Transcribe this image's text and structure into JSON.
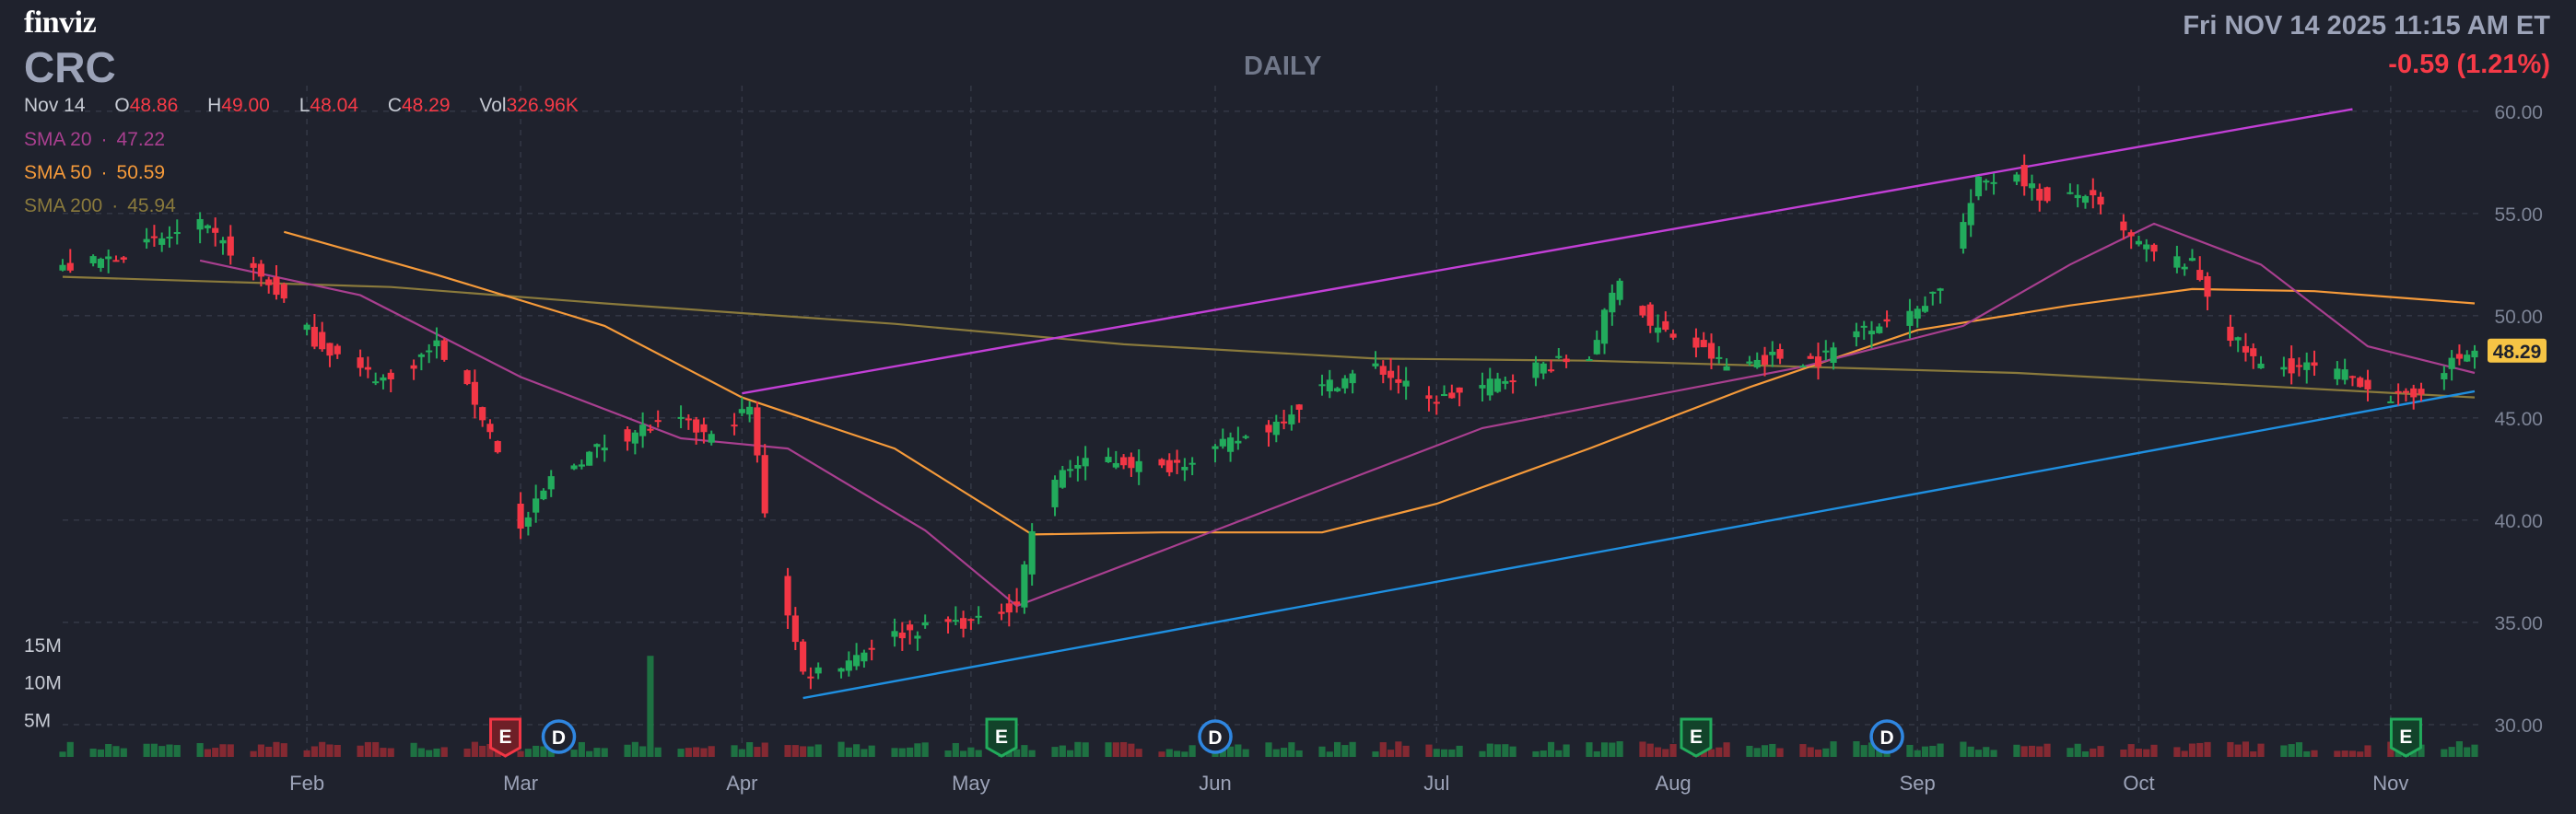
{
  "header": {
    "logo": "finviz",
    "ticker": "CRC",
    "period": "DAILY",
    "datetime": "Fri NOV 14 2025 11:15 AM ET",
    "change": "-0.59 (1.21%)"
  },
  "ohlc": {
    "date": "Nov 14",
    "o_label": "O",
    "o": "48.86",
    "h_label": "H",
    "h": "49.00",
    "l_label": "L",
    "l": "48.04",
    "c_label": "C",
    "c": "48.29",
    "vol_label": "Vol",
    "vol": "326.96K"
  },
  "indicators": [
    {
      "label": "SMA 20",
      "value": "47.22",
      "color": "#a83f8f"
    },
    {
      "label": "SMA 50",
      "value": "50.59",
      "color": "#f59a3a"
    },
    {
      "label": "SMA 200",
      "value": "45.94",
      "color": "#8a7a3c"
    }
  ],
  "colors": {
    "background": "#1f222d",
    "up": "#22ab5c",
    "down": "#f23645",
    "grid": "#363a47",
    "upper_trendline": "#c23fd6",
    "lower_trendline": "#1f8fe0",
    "last_price_tag": "#f6c445"
  },
  "chart_data": {
    "type": "candlestick",
    "ylim": [
      29.5,
      60.8
    ],
    "yticks": [
      "60.00",
      "55.00",
      "50.00",
      "45.00",
      "40.00",
      "35.00",
      "30.00"
    ],
    "volume_ticks": [
      "15M",
      "10M",
      "5M"
    ],
    "x_start": "2025-01-02",
    "x_end": "2025-11-14",
    "month_labels": [
      {
        "label": "Feb",
        "date": "2025-02-03"
      },
      {
        "label": "Mar",
        "date": "2025-03-03"
      },
      {
        "label": "Apr",
        "date": "2025-04-01"
      },
      {
        "label": "May",
        "date": "2025-05-01"
      },
      {
        "label": "Jun",
        "date": "2025-06-02"
      },
      {
        "label": "Jul",
        "date": "2025-07-01"
      },
      {
        "label": "Aug",
        "date": "2025-08-01"
      },
      {
        "label": "Sep",
        "date": "2025-09-02"
      },
      {
        "label": "Oct",
        "date": "2025-10-01"
      },
      {
        "label": "Nov",
        "date": "2025-11-03"
      }
    ],
    "last_price": "48.29",
    "price_path": [
      [
        "2025-01-02",
        52.3
      ],
      [
        "2025-01-08",
        52.8
      ],
      [
        "2025-01-14",
        53.6
      ],
      [
        "2025-01-20",
        54.4
      ],
      [
        "2025-01-24",
        53.2
      ],
      [
        "2025-01-30",
        51.2
      ],
      [
        "2025-02-04",
        48.8
      ],
      [
        "2025-02-10",
        47.3
      ],
      [
        "2025-02-14",
        46.8
      ],
      [
        "2025-02-20",
        48.6
      ],
      [
        "2025-02-25",
        45.8
      ],
      [
        "2025-02-28",
        43.5
      ],
      [
        "2025-03-03",
        39.5
      ],
      [
        "2025-03-07",
        42.0
      ],
      [
        "2025-03-13",
        43.5
      ],
      [
        "2025-03-19",
        44.5
      ],
      [
        "2025-03-24",
        44.8
      ],
      [
        "2025-03-28",
        44.0
      ],
      [
        "2025-04-02",
        45.5
      ],
      [
        "2025-04-04",
        40.5
      ],
      [
        "2025-04-07",
        35.5
      ],
      [
        "2025-04-09",
        32.5
      ],
      [
        "2025-04-14",
        33.0
      ],
      [
        "2025-04-20",
        34.3
      ],
      [
        "2025-04-28",
        35.0
      ],
      [
        "2025-05-02",
        35.0
      ],
      [
        "2025-05-07",
        36.0
      ],
      [
        "2025-05-09",
        39.5
      ],
      [
        "2025-05-13",
        42.5
      ],
      [
        "2025-05-19",
        43.0
      ],
      [
        "2025-05-26",
        42.5
      ],
      [
        "2025-06-02",
        43.5
      ],
      [
        "2025-06-09",
        44.5
      ],
      [
        "2025-06-16",
        46.5
      ],
      [
        "2025-06-23",
        47.5
      ],
      [
        "2025-06-30",
        45.8
      ],
      [
        "2025-07-07",
        46.5
      ],
      [
        "2025-07-14",
        47.5
      ],
      [
        "2025-07-21",
        48.0
      ],
      [
        "2025-07-25",
        52.0
      ],
      [
        "2025-07-29",
        49.5
      ],
      [
        "2025-08-04",
        48.5
      ],
      [
        "2025-08-08",
        47.5
      ],
      [
        "2025-08-14",
        48.0
      ],
      [
        "2025-08-20",
        47.8
      ],
      [
        "2025-08-26",
        49.5
      ],
      [
        "2025-09-01",
        50.0
      ],
      [
        "2025-09-05",
        51.5
      ],
      [
        "2025-09-10",
        56.5
      ],
      [
        "2025-09-15",
        57.0
      ],
      [
        "2025-09-19",
        55.5
      ],
      [
        "2025-09-24",
        56.0
      ],
      [
        "2025-09-29",
        54.0
      ],
      [
        "2025-10-03",
        53.0
      ],
      [
        "2025-10-08",
        52.5
      ],
      [
        "2025-10-13",
        49.0
      ],
      [
        "2025-10-17",
        47.5
      ],
      [
        "2025-10-23",
        47.5
      ],
      [
        "2025-10-29",
        47.0
      ],
      [
        "2025-11-03",
        46.0
      ],
      [
        "2025-11-06",
        46.0
      ],
      [
        "2025-11-10",
        47.5
      ],
      [
        "2025-11-14",
        48.29
      ]
    ],
    "sma_20": [
      [
        "2025-01-20",
        52.7
      ],
      [
        "2025-02-10",
        51.0
      ],
      [
        "2025-03-03",
        47.0
      ],
      [
        "2025-03-24",
        44.0
      ],
      [
        "2025-04-07",
        43.5
      ],
      [
        "2025-04-25",
        39.5
      ],
      [
        "2025-05-07",
        35.8
      ],
      [
        "2025-05-26",
        38.5
      ],
      [
        "2025-06-16",
        41.5
      ],
      [
        "2025-07-07",
        44.5
      ],
      [
        "2025-07-28",
        46.0
      ],
      [
        "2025-08-18",
        47.5
      ],
      [
        "2025-09-08",
        49.5
      ],
      [
        "2025-09-22",
        52.5
      ],
      [
        "2025-10-03",
        54.5
      ],
      [
        "2025-10-17",
        52.5
      ],
      [
        "2025-10-31",
        48.5
      ],
      [
        "2025-11-14",
        47.2
      ]
    ],
    "sma_50": [
      [
        "2025-01-31",
        54.1
      ],
      [
        "2025-02-20",
        52.0
      ],
      [
        "2025-03-14",
        49.5
      ],
      [
        "2025-04-01",
        46.0
      ],
      [
        "2025-04-21",
        43.5
      ],
      [
        "2025-05-09",
        39.3
      ],
      [
        "2025-05-26",
        39.4
      ],
      [
        "2025-06-16",
        39.4
      ],
      [
        "2025-07-01",
        40.8
      ],
      [
        "2025-07-21",
        43.5
      ],
      [
        "2025-08-11",
        46.5
      ],
      [
        "2025-09-02",
        49.3
      ],
      [
        "2025-09-22",
        50.5
      ],
      [
        "2025-10-08",
        51.3
      ],
      [
        "2025-10-24",
        51.2
      ],
      [
        "2025-11-14",
        50.6
      ]
    ],
    "sma_200": [
      [
        "2025-01-02",
        51.9
      ],
      [
        "2025-02-14",
        51.4
      ],
      [
        "2025-03-14",
        50.6
      ],
      [
        "2025-04-21",
        49.6
      ],
      [
        "2025-05-21",
        48.6
      ],
      [
        "2025-06-23",
        47.9
      ],
      [
        "2025-07-21",
        47.8
      ],
      [
        "2025-08-18",
        47.5
      ],
      [
        "2025-09-15",
        47.2
      ],
      [
        "2025-10-15",
        46.6
      ],
      [
        "2025-11-14",
        46.0
      ]
    ],
    "upper_trendline": [
      [
        "2025-04-01",
        46.2
      ],
      [
        "2025-10-29",
        60.1
      ]
    ],
    "lower_trendline": [
      [
        "2025-04-09",
        31.3
      ],
      [
        "2025-11-14",
        46.3
      ]
    ],
    "volume_spike": {
      "date": "2025-03-20",
      "value": 13.5
    },
    "events": [
      {
        "date": "2025-03-01",
        "label": "E",
        "kind": "earnings-past"
      },
      {
        "date": "2025-03-08",
        "label": "D",
        "kind": "dividend"
      },
      {
        "date": "2025-05-05",
        "label": "E",
        "kind": "earnings"
      },
      {
        "date": "2025-06-02",
        "label": "D",
        "kind": "dividend"
      },
      {
        "date": "2025-08-04",
        "label": "E",
        "kind": "earnings"
      },
      {
        "date": "2025-08-29",
        "label": "D",
        "kind": "dividend"
      },
      {
        "date": "2025-11-05",
        "label": "E",
        "kind": "earnings"
      }
    ]
  }
}
